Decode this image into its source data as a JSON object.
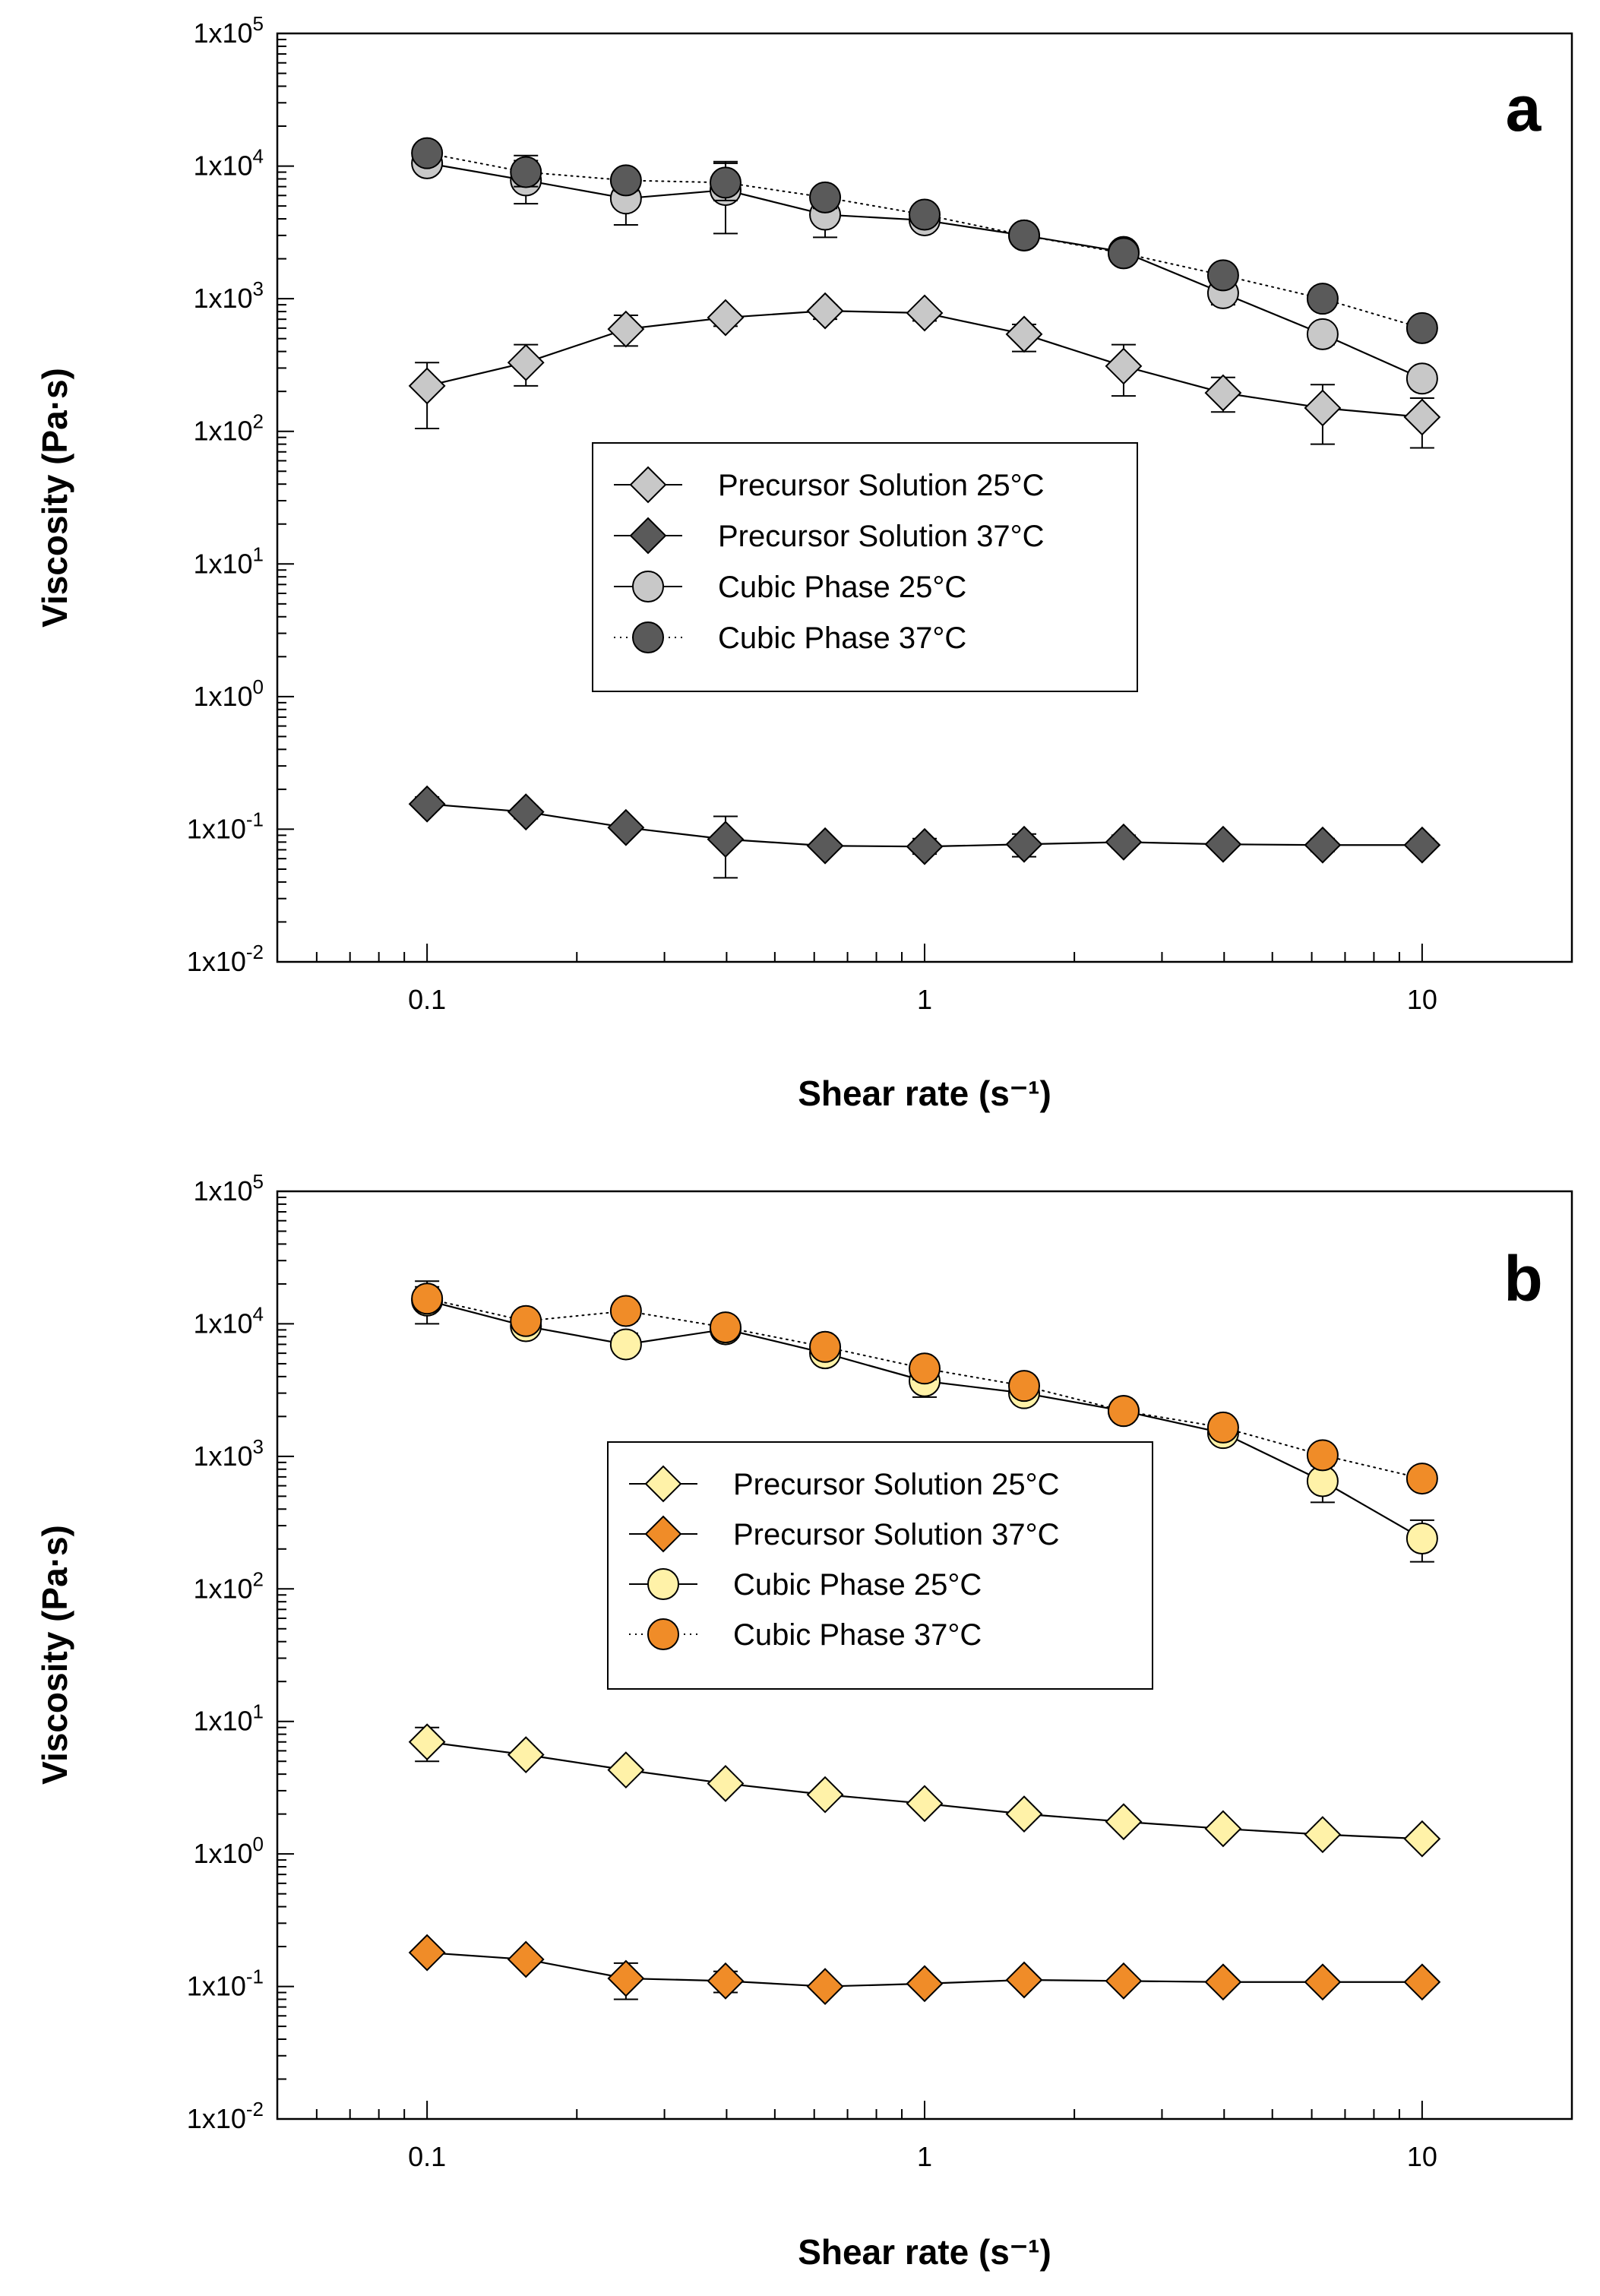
{
  "chart_data": [
    {
      "type": "line",
      "panel_label": "a",
      "title": "",
      "xlabel": "Shear rate (s⁻¹)",
      "ylabel": "Viscosity (Pa·s)",
      "xscale": "log",
      "yscale": "log",
      "xlim": [
        0.05,
        20
      ],
      "ylim": [
        0.01,
        100000
      ],
      "xtick_values": [
        0.1,
        1,
        10
      ],
      "xtick_labels": [
        "0.1",
        "1",
        "10"
      ],
      "ytick_values": [
        0.01,
        0.1,
        1,
        10,
        100,
        1000,
        10000,
        100000
      ],
      "ytick_labels": [
        {
          "base": "1x10",
          "exp": "-2"
        },
        {
          "base": "1x10",
          "exp": "-1"
        },
        {
          "base": "1x10",
          "exp": "0"
        },
        {
          "base": "1x10",
          "exp": "1"
        },
        {
          "base": "1x10",
          "exp": "2"
        },
        {
          "base": "1x10",
          "exp": "3"
        },
        {
          "base": "1x10",
          "exp": "4"
        },
        {
          "base": "1x10",
          "exp": "5"
        }
      ],
      "legend_placement": "center",
      "x": [
        0.1,
        0.158,
        0.251,
        0.398,
        0.631,
        1.0,
        1.585,
        2.512,
        3.981,
        6.31,
        10.0
      ],
      "series": [
        {
          "name": "Precursor Solution 25°C",
          "marker": "diamond",
          "color": "#c8c8c8",
          "line_style": "solid",
          "values": [
            220,
            330,
            590,
            720,
            810,
            780,
            540,
            310,
            195,
            150,
            128
          ],
          "err_low": [
            105,
            220,
            440,
            620,
            700,
            680,
            400,
            185,
            140,
            80,
            75
          ],
          "err_high": [
            330,
            450,
            750,
            790,
            900,
            850,
            640,
            450,
            255,
            225,
            178
          ]
        },
        {
          "name": "Precursor Solution 37°C",
          "marker": "diamond",
          "color": "#5a5a5a",
          "line_style": "solid",
          "values": [
            0.155,
            0.135,
            0.103,
            0.084,
            0.075,
            0.074,
            0.077,
            0.08,
            0.077,
            0.076,
            0.076
          ],
          "err_low": [
            0.14,
            0.12,
            0.095,
            0.043,
            0.07,
            0.065,
            0.062,
            0.072,
            0.07,
            0.068,
            0.07
          ],
          "err_high": [
            0.175,
            0.15,
            0.11,
            0.125,
            0.082,
            0.085,
            0.092,
            0.09,
            0.085,
            0.085,
            0.085
          ]
        },
        {
          "name": "Cubic Phase 25°C",
          "marker": "circle",
          "color": "#c8c8c8",
          "line_style": "solid",
          "values": [
            10500,
            7800,
            5700,
            6600,
            4300,
            3900,
            3000,
            2250,
            1100,
            540,
            250
          ],
          "err_low": [
            9200,
            5200,
            3600,
            3100,
            2900,
            3300,
            2700,
            2050,
            900,
            450,
            210
          ],
          "err_high": [
            13500,
            11000,
            7700,
            10500,
            5800,
            4500,
            3300,
            2450,
            1300,
            630,
            290
          ]
        },
        {
          "name": "Cubic Phase 37°C",
          "marker": "circle",
          "color": "#5a5a5a",
          "line_style": "dotted",
          "values": [
            12500,
            9000,
            7800,
            7500,
            5800,
            4300,
            3000,
            2200,
            1500,
            1000,
            600
          ],
          "err_low": [
            11000,
            7000,
            6500,
            5500,
            4800,
            3800,
            2800,
            2000,
            1300,
            900,
            540
          ],
          "err_high": [
            14500,
            12000,
            9000,
            10800,
            6500,
            4800,
            3200,
            2400,
            1700,
            1100,
            660
          ]
        }
      ]
    },
    {
      "type": "line",
      "panel_label": "b",
      "title": "",
      "xlabel": "Shear rate (s⁻¹)",
      "ylabel": "Viscosity (Pa·s)",
      "xscale": "log",
      "yscale": "log",
      "xlim": [
        0.05,
        20
      ],
      "ylim": [
        0.01,
        100000
      ],
      "xtick_values": [
        0.1,
        1,
        10
      ],
      "xtick_labels": [
        "0.1",
        "1",
        "10"
      ],
      "ytick_values": [
        0.01,
        0.1,
        1,
        10,
        100,
        1000,
        10000,
        100000
      ],
      "ytick_labels": [
        {
          "base": "1x10",
          "exp": "-2"
        },
        {
          "base": "1x10",
          "exp": "-1"
        },
        {
          "base": "1x10",
          "exp": "0"
        },
        {
          "base": "1x10",
          "exp": "1"
        },
        {
          "base": "1x10",
          "exp": "2"
        },
        {
          "base": "1x10",
          "exp": "3"
        },
        {
          "base": "1x10",
          "exp": "4"
        },
        {
          "base": "1x10",
          "exp": "5"
        }
      ],
      "legend_placement": "center",
      "x": [
        0.1,
        0.158,
        0.251,
        0.398,
        0.631,
        1.0,
        1.585,
        2.512,
        3.981,
        6.31,
        10.0
      ],
      "series": [
        {
          "name": "Precursor Solution 25°C",
          "marker": "diamond",
          "color": "#fff2a8",
          "line_style": "solid",
          "values": [
            7.0,
            5.6,
            4.3,
            3.4,
            2.8,
            2.4,
            2.0,
            1.75,
            1.55,
            1.4,
            1.3
          ],
          "err_low": [
            5.0,
            5.2,
            4.0,
            3.2,
            2.6,
            2.25,
            1.9,
            1.65,
            1.45,
            1.3,
            1.2
          ],
          "err_high": [
            9.0,
            6.0,
            4.6,
            3.6,
            3.0,
            2.55,
            2.1,
            1.85,
            1.65,
            1.5,
            1.4
          ]
        },
        {
          "name": "Precursor Solution 37°C",
          "marker": "diamond",
          "color": "#f08c28",
          "line_style": "solid",
          "values": [
            0.18,
            0.16,
            0.115,
            0.11,
            0.1,
            0.105,
            0.112,
            0.11,
            0.108,
            0.108,
            0.108
          ],
          "err_low": [
            0.165,
            0.15,
            0.08,
            0.09,
            0.095,
            0.095,
            0.105,
            0.102,
            0.1,
            0.1,
            0.1
          ],
          "err_high": [
            0.195,
            0.17,
            0.15,
            0.13,
            0.106,
            0.115,
            0.12,
            0.118,
            0.116,
            0.116,
            0.116
          ]
        },
        {
          "name": "Cubic Phase 25°C",
          "marker": "circle",
          "color": "#fff2a8",
          "line_style": "solid",
          "values": [
            15000,
            9600,
            7000,
            9100,
            6000,
            3700,
            3000,
            2200,
            1500,
            650,
            240
          ],
          "err_low": [
            10000,
            8500,
            6000,
            8000,
            5200,
            2800,
            2700,
            2000,
            1300,
            450,
            160
          ],
          "err_high": [
            21000,
            11000,
            8500,
            10000,
            6800,
            4500,
            3300,
            2400,
            1700,
            850,
            330
          ]
        },
        {
          "name": "Cubic Phase 37°C",
          "marker": "circle",
          "color": "#f08c28",
          "line_style": "dotted",
          "values": [
            15500,
            10500,
            12500,
            9400,
            6700,
            4600,
            3400,
            2200,
            1650,
            1020,
            680
          ],
          "err_low": [
            13000,
            9500,
            10500,
            8500,
            6000,
            3800,
            3000,
            2000,
            1450,
            900,
            600
          ],
          "err_high": [
            19000,
            11500,
            14500,
            10300,
            7400,
            5400,
            3800,
            2400,
            1850,
            1150,
            760
          ]
        }
      ]
    }
  ]
}
